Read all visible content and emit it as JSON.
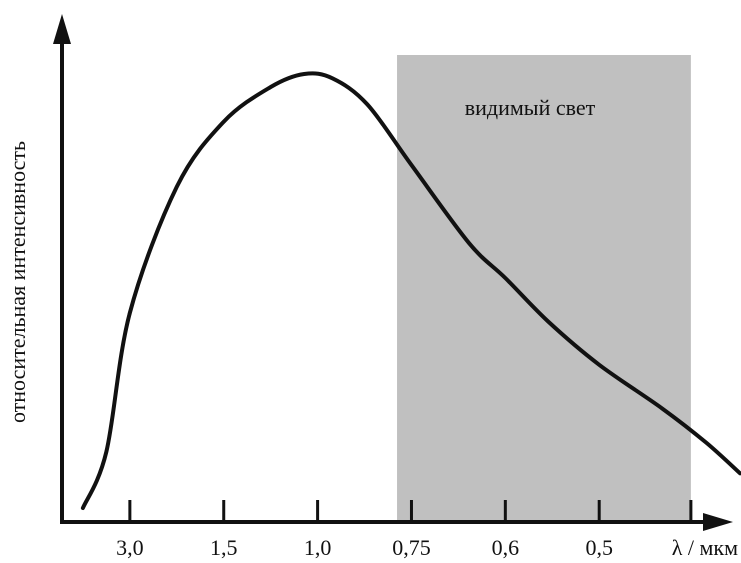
{
  "chart_data": {
    "type": "line",
    "title": "",
    "ylabel": "относительная интенсивность",
    "xlabel": "λ / мкм",
    "x_scale": "reciprocal",
    "x_ticks": [
      {
        "label": "3,0",
        "value": 3.0
      },
      {
        "label": "1,5",
        "value": 1.5
      },
      {
        "label": "1,0",
        "value": 1.0
      },
      {
        "label": "0,75",
        "value": 0.75
      },
      {
        "label": "0,6",
        "value": 0.6
      },
      {
        "label": "0,5",
        "value": 0.5
      },
      {
        "label": "",
        "value": 0.43
      }
    ],
    "y_ticks": [],
    "y_range": [
      0,
      1
    ],
    "grid": false,
    "legend": "none",
    "shaded_region": {
      "label": "видимый свет",
      "x_from": 0.78,
      "x_to": 0.43,
      "color": "#c0c0c0"
    },
    "series": [
      {
        "color": "#111111",
        "points": [
          {
            "x": 6.0,
            "y": 0.0
          },
          {
            "x": 4.0,
            "y": 0.13
          },
          {
            "x": 3.0,
            "y": 0.45
          },
          {
            "x": 2.0,
            "y": 0.74
          },
          {
            "x": 1.5,
            "y": 0.89
          },
          {
            "x": 1.2,
            "y": 0.97
          },
          {
            "x": 1.05,
            "y": 1.0
          },
          {
            "x": 0.95,
            "y": 0.99
          },
          {
            "x": 0.85,
            "y": 0.93
          },
          {
            "x": 0.75,
            "y": 0.79
          },
          {
            "x": 0.65,
            "y": 0.61
          },
          {
            "x": 0.6,
            "y": 0.53
          },
          {
            "x": 0.55,
            "y": 0.43
          },
          {
            "x": 0.5,
            "y": 0.33
          },
          {
            "x": 0.45,
            "y": 0.23
          },
          {
            "x": 0.42,
            "y": 0.15
          },
          {
            "x": 0.4,
            "y": 0.08
          }
        ]
      }
    ]
  }
}
